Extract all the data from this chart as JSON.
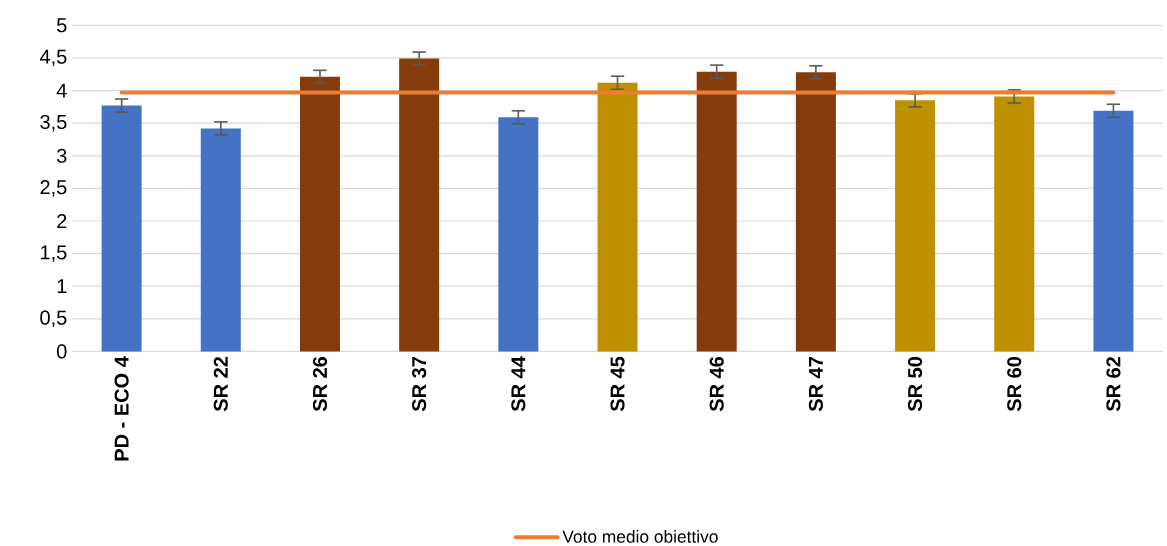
{
  "chart_data": {
    "type": "bar",
    "categories": [
      "PD - ECO 4",
      "SR 22",
      "SR 26",
      "SR 37",
      "SR 44",
      "SR 45",
      "SR 46",
      "SR 47",
      "SR 50",
      "SR 60",
      "SR 62"
    ],
    "series": [
      {
        "colors": [
          "#4472c4",
          "#4472c4",
          "#843c0c",
          "#843c0c",
          "#4472c4",
          "#bf9000",
          "#843c0c",
          "#843c0c",
          "#bf9000",
          "#bf9000",
          "#4472c4"
        ],
        "values": [
          3.77,
          3.42,
          4.21,
          4.49,
          3.59,
          4.12,
          4.29,
          4.28,
          3.85,
          3.91,
          3.69
        ],
        "errors": [
          0.1,
          0.1,
          0.1,
          0.1,
          0.1,
          0.1,
          0.1,
          0.1,
          0.1,
          0.1,
          0.1
        ]
      },
      {
        "type": "line",
        "name": "Voto medio obiettivo",
        "color": "#ed7d31",
        "values": [
          3.97,
          3.97,
          3.97,
          3.97,
          3.97,
          3.97,
          3.97,
          3.97,
          3.97,
          3.97,
          3.97
        ]
      }
    ],
    "ylim": [
      0,
      5
    ],
    "yticks": [
      0,
      {
        "value": 0.5,
        "label": "0,5"
      },
      1,
      {
        "value": 1.5,
        "label": "1,5"
      },
      2,
      {
        "value": 2.5,
        "label": "2,5"
      },
      3,
      {
        "value": 3.5,
        "label": "3,5"
      },
      4,
      {
        "value": 4.5,
        "label": "4,5"
      },
      5
    ],
    "grid": "y",
    "legend": "bottom"
  }
}
